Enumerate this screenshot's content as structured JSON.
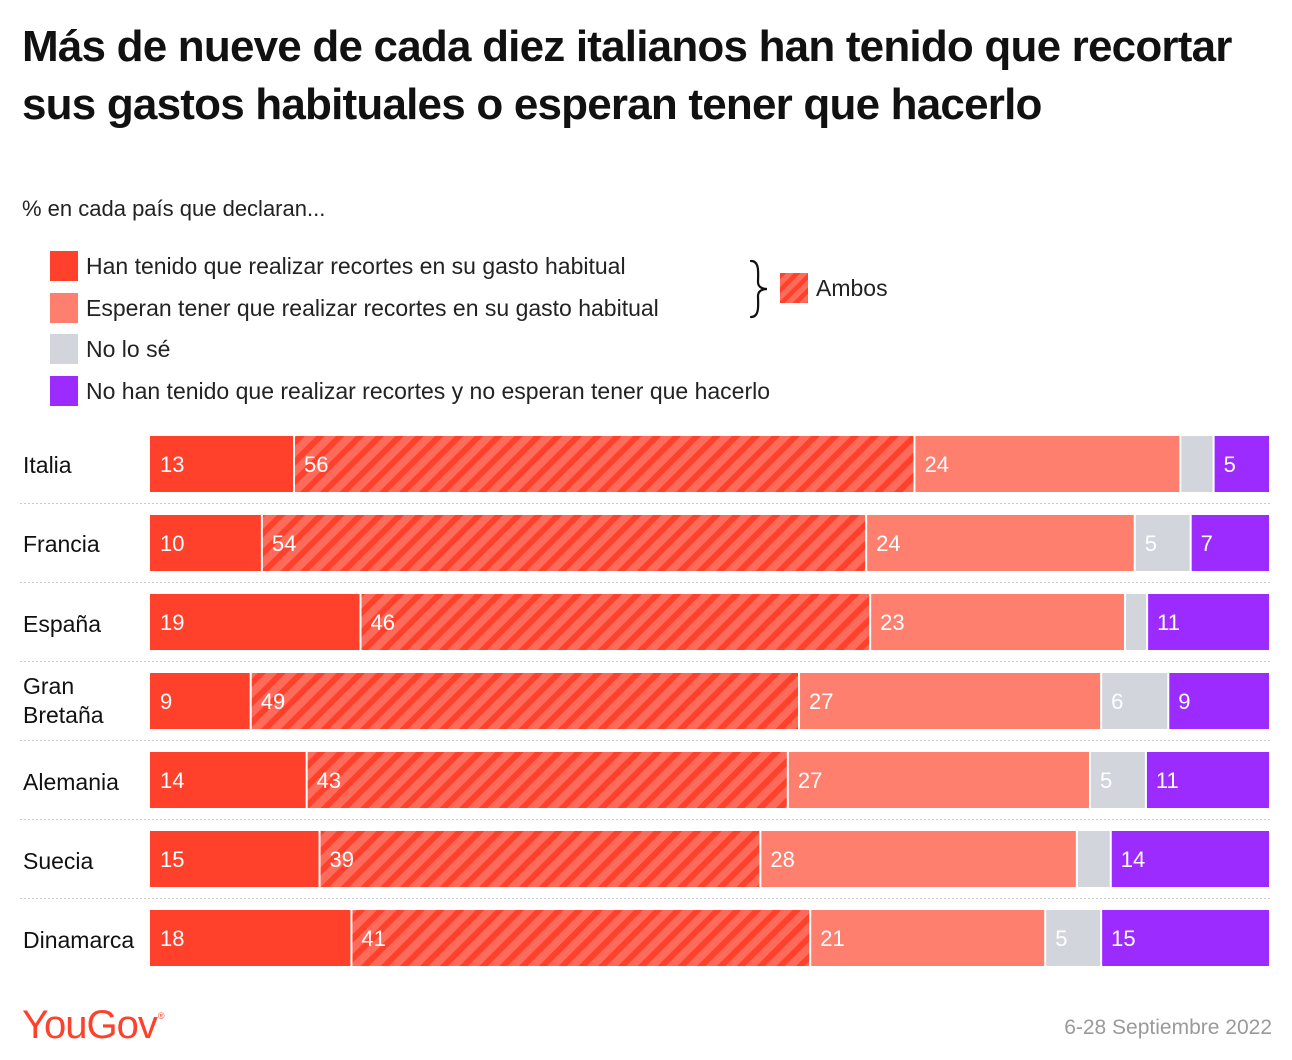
{
  "title": "Más de nueve de cada diez italianos han tenido que recortar sus gastos habituales o esperan tener que hacerlo",
  "subtitle": "% en cada país que declaran...",
  "legend": [
    {
      "label": "Han tenido que realizar recortes en su gasto habitual",
      "color": "#ff412c"
    },
    {
      "label": "Esperan tener que realizar recortes en su gasto habitual",
      "color": "#ff7f6f"
    },
    {
      "label": "No lo sé",
      "color": "#d3d5dc"
    },
    {
      "label": "No han tenido que realizar recortes y no esperan tener que hacerlo",
      "color": "#9b2bff"
    }
  ],
  "ambos_label": "Ambos",
  "colors": {
    "han_tenido": "#ff412c",
    "ambos_base": "#ff6b5a",
    "ambos_stripe": "#ff412c",
    "esperan": "#ff7f6f",
    "no_lo_se": "#d3d5dc",
    "no_han": "#9b2bff"
  },
  "chart_data": {
    "type": "bar",
    "orientation": "horizontal",
    "stacked": true,
    "xlim": [
      0,
      100
    ],
    "categories": [
      "Italia",
      "Francia",
      "España",
      "Gran Bretaña",
      "Alemania",
      "Suecia",
      "Dinamarca"
    ],
    "series": [
      {
        "name": "Han tenido que realizar recortes en su gasto habitual",
        "values": [
          13,
          10,
          19,
          9,
          14,
          15,
          18
        ]
      },
      {
        "name": "Ambos",
        "values": [
          56,
          54,
          46,
          49,
          43,
          39,
          41
        ]
      },
      {
        "name": "Esperan tener que realizar recortes en su gasto habitual",
        "values": [
          24,
          24,
          23,
          27,
          27,
          28,
          21
        ]
      },
      {
        "name": "No lo sé",
        "values": [
          3,
          5,
          2,
          6,
          5,
          3,
          5
        ]
      },
      {
        "name": "No han tenido que realizar recortes y no esperan tener que hacerlo",
        "values": [
          5,
          7,
          11,
          9,
          11,
          14,
          15
        ]
      }
    ],
    "unlabeled_no_lo_se": [
      true,
      false,
      true,
      false,
      false,
      true,
      false
    ]
  },
  "source_logo": "YouGov",
  "date": "6-28 Septiembre 2022"
}
